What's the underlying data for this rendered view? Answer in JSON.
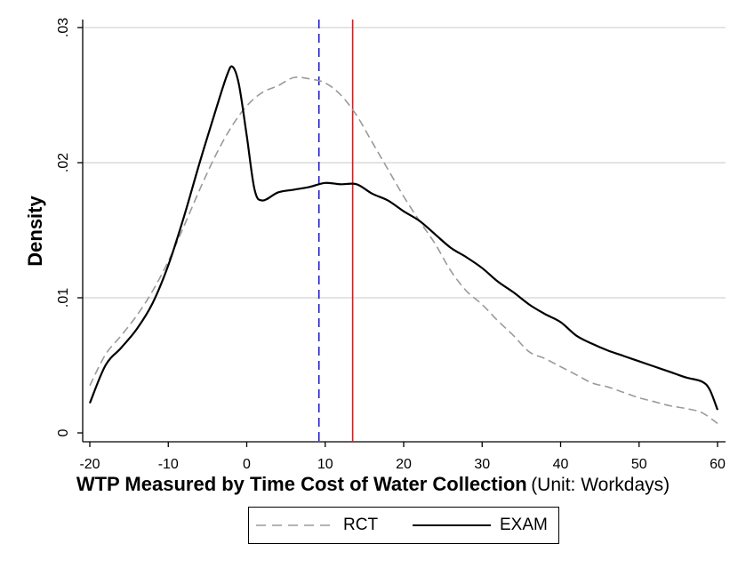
{
  "chart_data": {
    "type": "line",
    "title": "",
    "xlabel": "WTP Measured by Time Cost of Water Collection",
    "xlabel_unit": "(Unit: Workdays)",
    "ylabel": "Density",
    "xlim": [
      -20,
      60
    ],
    "ylim": [
      0,
      0.03
    ],
    "xticks": [
      -20,
      -10,
      0,
      10,
      20,
      30,
      40,
      50,
      60
    ],
    "xtick_labels": [
      "-20",
      "-10",
      "0",
      "10",
      "20",
      "30",
      "40",
      "50",
      "60"
    ],
    "yticks": [
      0,
      0.01,
      0.02,
      0.03
    ],
    "ytick_labels": [
      "0",
      ".01",
      ".02",
      ".03"
    ],
    "grid": "horizontal",
    "legend_position": "bottom",
    "vertical_lines": [
      {
        "x": 9.2,
        "color": "#1a1ad6",
        "style": "dashed"
      },
      {
        "x": 13.5,
        "color": "#e0191b",
        "style": "solid"
      }
    ],
    "series": [
      {
        "name": "RCT",
        "color": "#9a9a9a",
        "style": "dashed",
        "points": [
          [
            -20,
            0.0035
          ],
          [
            -18,
            0.0058
          ],
          [
            -16,
            0.0072
          ],
          [
            -14,
            0.0087
          ],
          [
            -12,
            0.0105
          ],
          [
            -10,
            0.0127
          ],
          [
            -8,
            0.0153
          ],
          [
            -6,
            0.018
          ],
          [
            -4,
            0.0205
          ],
          [
            -2,
            0.0226
          ],
          [
            0,
            0.0242
          ],
          [
            2,
            0.0252
          ],
          [
            4,
            0.0257
          ],
          [
            6,
            0.0263
          ],
          [
            8,
            0.0262
          ],
          [
            10,
            0.0259
          ],
          [
            12,
            0.025
          ],
          [
            14,
            0.0235
          ],
          [
            16,
            0.0215
          ],
          [
            18,
            0.0195
          ],
          [
            20,
            0.0175
          ],
          [
            22,
            0.0157
          ],
          [
            24,
            0.014
          ],
          [
            26,
            0.012
          ],
          [
            28,
            0.0105
          ],
          [
            30,
            0.0095
          ],
          [
            32,
            0.0083
          ],
          [
            34,
            0.0072
          ],
          [
            36,
            0.006
          ],
          [
            38,
            0.0055
          ],
          [
            40,
            0.0049
          ],
          [
            42,
            0.0043
          ],
          [
            44,
            0.0037
          ],
          [
            46,
            0.0034
          ],
          [
            48,
            0.003
          ],
          [
            50,
            0.0026
          ],
          [
            52,
            0.0023
          ],
          [
            54,
            0.002
          ],
          [
            56,
            0.0018
          ],
          [
            58,
            0.0015
          ],
          [
            60,
            0.0007
          ]
        ]
      },
      {
        "name": "EXAM",
        "color": "#000000",
        "style": "solid",
        "points": [
          [
            -20,
            0.0022
          ],
          [
            -18,
            0.005
          ],
          [
            -16,
            0.0063
          ],
          [
            -14,
            0.0077
          ],
          [
            -12,
            0.0096
          ],
          [
            -10,
            0.0124
          ],
          [
            -8,
            0.016
          ],
          [
            -6,
            0.02
          ],
          [
            -4,
            0.0238
          ],
          [
            -2.5,
            0.0265
          ],
          [
            -1.8,
            0.0271
          ],
          [
            -1,
            0.0258
          ],
          [
            0,
            0.022
          ],
          [
            1,
            0.018
          ],
          [
            2,
            0.0172
          ],
          [
            4,
            0.0178
          ],
          [
            6,
            0.018
          ],
          [
            8,
            0.0182
          ],
          [
            10,
            0.0185
          ],
          [
            12,
            0.0184
          ],
          [
            14,
            0.0184
          ],
          [
            16,
            0.0177
          ],
          [
            18,
            0.0172
          ],
          [
            20,
            0.0164
          ],
          [
            22,
            0.0157
          ],
          [
            24,
            0.0147
          ],
          [
            26,
            0.0137
          ],
          [
            28,
            0.013
          ],
          [
            30,
            0.0122
          ],
          [
            32,
            0.0112
          ],
          [
            34,
            0.0104
          ],
          [
            36,
            0.0095
          ],
          [
            38,
            0.0088
          ],
          [
            40,
            0.0082
          ],
          [
            42,
            0.0072
          ],
          [
            44,
            0.0066
          ],
          [
            46,
            0.0061
          ],
          [
            48,
            0.0057
          ],
          [
            50,
            0.0053
          ],
          [
            52,
            0.0049
          ],
          [
            54,
            0.0045
          ],
          [
            56,
            0.0041
          ],
          [
            58,
            0.0038
          ],
          [
            59,
            0.0032
          ],
          [
            60,
            0.0017
          ]
        ]
      }
    ]
  }
}
